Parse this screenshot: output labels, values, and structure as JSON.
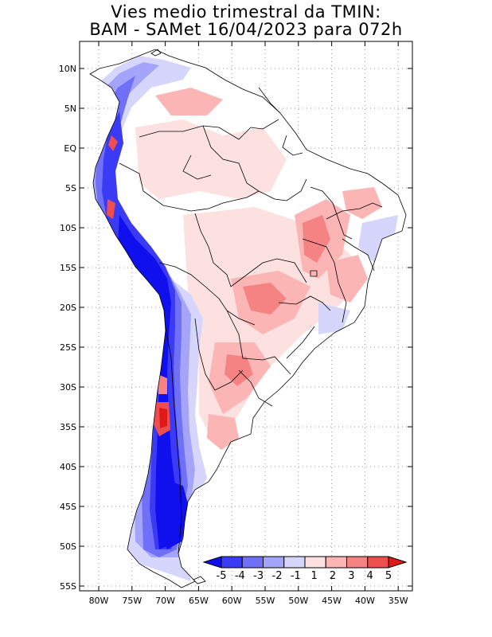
{
  "title_line1": "Vies medio trimestral da TMIN:",
  "title_line2": "BAM - SAMet 16/04/2023  para 072h",
  "lat_ticks": [
    "10N",
    "5N",
    "EQ",
    "5S",
    "10S",
    "15S",
    "20S",
    "25S",
    "30S",
    "35S",
    "40S",
    "45S",
    "50S",
    "55S"
  ],
  "lon_ticks": [
    "80W",
    "75W",
    "70W",
    "65W",
    "60W",
    "55W",
    "50W",
    "45W",
    "40W",
    "35W"
  ],
  "colorbar": {
    "labels": [
      "-5",
      "-4",
      "-3",
      "-2",
      "-1",
      "1",
      "2",
      "3",
      "4",
      "5"
    ],
    "colors": [
      "#1010ee",
      "#3b3bf5",
      "#6f6ff8",
      "#a4a4fb",
      "#d6d6fd",
      "#fde0e0",
      "#fbb5b5",
      "#f58383",
      "#ee4e4e",
      "#e11818"
    ]
  },
  "colors": {
    "land": "#ffffff",
    "ocean": "#ffffff",
    "grid": "#999999",
    "border": "#000000"
  }
}
